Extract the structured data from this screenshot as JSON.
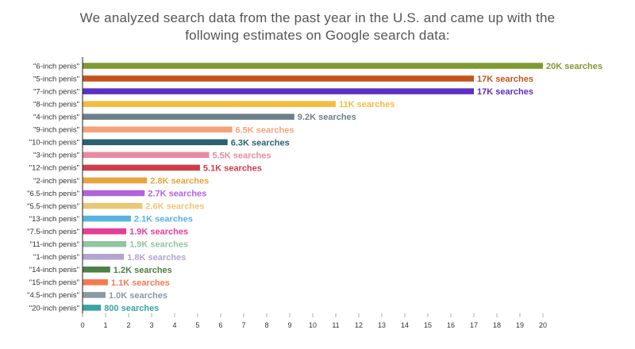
{
  "chart_data": {
    "type": "bar",
    "orientation": "horizontal",
    "title_lines": [
      "We analyzed search data from the past year in the U.S. and came up with the",
      "following estimates on Google search data:"
    ],
    "categories": [
      "\"6-inch penis\"",
      "\"5-inch penis\"",
      "\"7-inch penis\"",
      "\"8-inch penis\"",
      "\"4-inch penis\"",
      "\"9-inch penis\"",
      "\"10-inch penis\"",
      "\"3-inch penis\"",
      "\"12-inch penis\"",
      "\"2-inch penis\"",
      "\"6.5-inch penis\"",
      "\"5.5-inch penis\"",
      "\"13-inch penis\"",
      "\"7.5-inch penis\"",
      "\"11-inch penis\"",
      "\"1-inch penis\"",
      "\"14-inch penis\"",
      "\"15-inch penis\"",
      "\"4.5-inch penis\"",
      "\"20-inch penis\""
    ],
    "values": [
      20,
      17,
      17,
      11,
      9.2,
      6.5,
      6.3,
      5.5,
      5.1,
      2.8,
      2.7,
      2.6,
      2.1,
      1.9,
      1.9,
      1.8,
      1.2,
      1.1,
      1.0,
      0.8
    ],
    "value_labels": [
      "20K searches",
      "17K searches",
      "17K searches",
      "11K searches",
      "9.2K searches",
      "6.5K searches",
      "6.3K searches",
      "5.5K searches",
      "5.1K searches",
      "2.8K searches",
      "2.7K searches",
      "2.6K searches",
      "2.1K searches",
      "1.9K searches",
      "1.9K searches",
      "1.8K searches",
      "1.2K searches",
      "1.1K searches",
      "1.0K searches",
      "800 searches"
    ],
    "colors": [
      "#7f9a32",
      "#c4541c",
      "#5a2fc6",
      "#f5bb3f",
      "#6d8089",
      "#f3a27c",
      "#2b6272",
      "#e88aa2",
      "#cf3d4a",
      "#e7a43d",
      "#b263dc",
      "#e9c779",
      "#5ab3df",
      "#e63d97",
      "#93c4a2",
      "#b3a4cf",
      "#4d7f46",
      "#f57a53",
      "#8a9aa5",
      "#3aa3a3"
    ],
    "x_ticks": [
      "0",
      "1",
      "2",
      "3",
      "4",
      "5",
      "6",
      "7",
      "8",
      "9",
      "10",
      "11",
      "12",
      "13",
      "14",
      "15",
      "16",
      "17",
      "18",
      "19",
      "20"
    ],
    "xlim": [
      0,
      20
    ],
    "grid": false,
    "legend": "none"
  }
}
